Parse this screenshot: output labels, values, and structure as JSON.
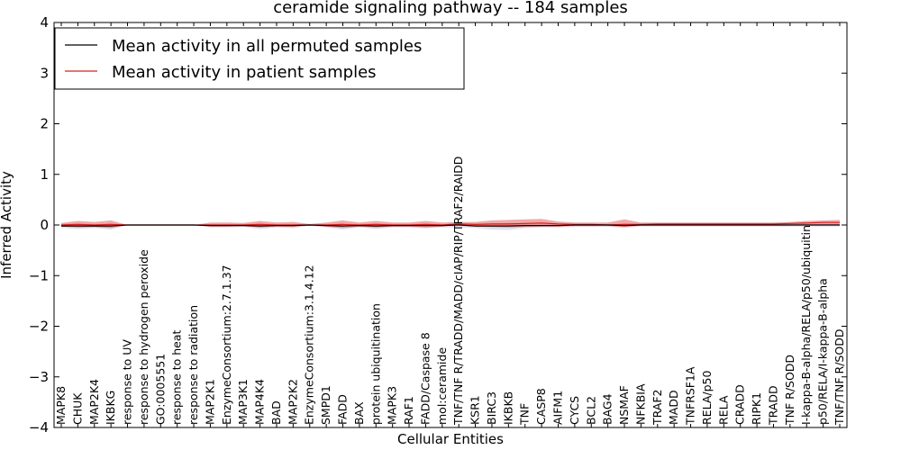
{
  "chart_data": {
    "type": "line",
    "title": "ceramide signaling pathway -- 184 samples",
    "xlabel": "Cellular Entities",
    "ylabel": "Inferred Activity",
    "ylim": [
      -4,
      4
    ],
    "yticks": [
      4,
      3,
      2,
      1,
      0,
      -1,
      -2,
      -3,
      -4
    ],
    "ytick_labels": [
      "4",
      "3",
      "2",
      "1",
      "0",
      "−1",
      "−2",
      "−3",
      "−4"
    ],
    "legend": {
      "placement": "top-left",
      "entries": [
        {
          "label": "Mean activity in all permuted samples",
          "color": "#000000"
        },
        {
          "label": "Mean activity in patient samples",
          "color": "#d62020"
        }
      ]
    },
    "categories": [
      "MAPK8",
      "CHUK",
      "MAP2K4",
      "IKBKG",
      "response to UV",
      "response to hydrogen peroxide",
      "GO:0005551",
      "response to heat",
      "response to radiation",
      "MAP2K1",
      "EnzymeConsortium:2.7.1.37",
      "MAP3K1",
      "MAP4K4",
      "BAD",
      "MAP2K2",
      "EnzymeConsortium:3.1.4.12",
      "SMPD1",
      "FADD",
      "BAX",
      "protein ubiquitination",
      "MAPK3",
      "RAF1",
      "FADD/Caspase 8",
      "mol:ceramide",
      "TNF/TNF R/TRADD/MADD/cIAP/RIP/TRAF2/RAIDD",
      "KSR1",
      "BIRC3",
      "IKBKB",
      "TNF",
      "CASP8",
      "AIFM1",
      "CYCS",
      "BCL2",
      "BAG4",
      "NSMAF",
      "NFKBIA",
      "TRAF2",
      "MADD",
      "TNFRSF1A",
      "RELA/p50",
      "RELA",
      "CRADD",
      "RIPK1",
      "TRADD",
      "TNF R/SODD",
      "I-kappa-B-alpha/RELA/p50/ubiquitin",
      "p50/RELA/I-kappa-B-alpha",
      "TNF/TNF R/SODD"
    ],
    "series": [
      {
        "name": "Mean activity in patient samples",
        "color": "#d62020",
        "values": [
          0.0,
          0.01,
          0.0,
          0.01,
          0.0,
          0.0,
          0.0,
          0.0,
          0.0,
          0.0,
          0.0,
          0.0,
          0.01,
          0.0,
          0.0,
          0.0,
          0.0,
          0.01,
          0.0,
          0.01,
          0.0,
          0.0,
          0.01,
          0.0,
          0.02,
          0.01,
          0.02,
          0.02,
          0.03,
          0.04,
          0.02,
          0.01,
          0.01,
          0.0,
          0.01,
          0.01,
          0.02,
          0.02,
          0.02,
          0.02,
          0.02,
          0.02,
          0.02,
          0.02,
          0.03,
          0.04,
          0.05,
          0.05
        ],
        "band_lower": [
          -0.03,
          -0.05,
          -0.04,
          -0.06,
          0.0,
          0.0,
          0.0,
          0.0,
          0.0,
          -0.03,
          -0.03,
          -0.02,
          -0.05,
          -0.03,
          -0.04,
          0.0,
          -0.03,
          -0.06,
          -0.03,
          -0.05,
          -0.03,
          -0.03,
          -0.05,
          -0.03,
          0.0,
          -0.03,
          -0.04,
          -0.05,
          -0.04,
          -0.03,
          -0.03,
          -0.02,
          -0.02,
          -0.02,
          -0.04,
          -0.01,
          -0.01,
          -0.01,
          -0.01,
          -0.01,
          -0.01,
          -0.01,
          -0.01,
          -0.01,
          -0.01,
          0.0,
          0.0,
          0.0
        ],
        "band_upper": [
          0.04,
          0.08,
          0.06,
          0.09,
          0.0,
          0.0,
          0.0,
          0.0,
          0.0,
          0.05,
          0.05,
          0.04,
          0.08,
          0.05,
          0.06,
          0.02,
          0.05,
          0.09,
          0.05,
          0.08,
          0.05,
          0.05,
          0.08,
          0.05,
          0.06,
          0.06,
          0.09,
          0.1,
          0.11,
          0.12,
          0.07,
          0.05,
          0.05,
          0.05,
          0.11,
          0.05,
          0.05,
          0.05,
          0.05,
          0.05,
          0.05,
          0.05,
          0.05,
          0.05,
          0.06,
          0.08,
          0.09,
          0.1
        ]
      },
      {
        "name": "Mean activity in all permuted samples",
        "color": "#000000",
        "values": [
          -0.02,
          -0.02,
          -0.02,
          -0.02,
          0.0,
          0.0,
          0.0,
          0.0,
          0.0,
          -0.01,
          -0.01,
          -0.01,
          -0.02,
          -0.01,
          -0.01,
          0.0,
          -0.01,
          -0.02,
          -0.01,
          -0.02,
          -0.01,
          -0.01,
          -0.01,
          -0.01,
          0.0,
          -0.02,
          -0.02,
          -0.02,
          -0.01,
          -0.01,
          -0.01,
          0.0,
          0.0,
          0.0,
          -0.01,
          0.0,
          0.0,
          0.0,
          0.0,
          0.0,
          0.0,
          0.0,
          0.0,
          0.0,
          0.0,
          0.0,
          0.0,
          0.0
        ],
        "band_lower": [
          -0.06,
          -0.08,
          -0.06,
          -0.09,
          0.0,
          0.0,
          0.0,
          0.0,
          0.0,
          -0.05,
          -0.05,
          -0.04,
          -0.08,
          -0.05,
          -0.06,
          -0.02,
          -0.05,
          -0.09,
          -0.05,
          -0.08,
          -0.05,
          -0.05,
          -0.07,
          -0.05,
          -0.05,
          -0.06,
          -0.09,
          -0.1,
          -0.06,
          -0.05,
          -0.05,
          -0.04,
          -0.04,
          -0.03,
          -0.06,
          -0.03,
          -0.03,
          -0.03,
          -0.03,
          -0.03,
          -0.03,
          -0.03,
          -0.03,
          -0.03,
          -0.03,
          -0.03,
          -0.03,
          -0.03
        ],
        "band_upper": [
          0.02,
          0.03,
          0.02,
          0.03,
          0.0,
          0.0,
          0.0,
          0.0,
          0.0,
          0.02,
          0.02,
          0.02,
          0.03,
          0.02,
          0.02,
          0.01,
          0.02,
          0.03,
          0.02,
          0.03,
          0.02,
          0.02,
          0.03,
          0.02,
          0.02,
          0.02,
          0.03,
          0.04,
          0.03,
          0.03,
          0.02,
          0.02,
          0.02,
          0.02,
          0.03,
          0.02,
          0.02,
          0.02,
          0.02,
          0.02,
          0.02,
          0.02,
          0.02,
          0.02,
          0.02,
          0.02,
          0.02,
          0.02
        ]
      }
    ]
  }
}
